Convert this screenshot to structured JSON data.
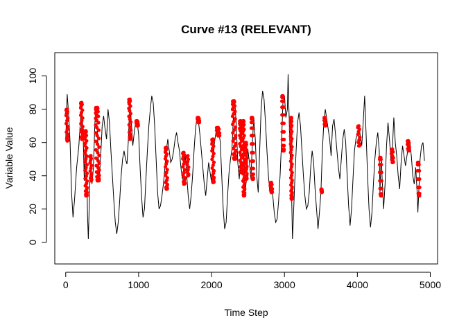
{
  "chart_data": {
    "type": "line",
    "title": "Curve #13 (RELEVANT)",
    "xlabel": "Time Step",
    "ylabel": "Variable Value",
    "xlim": [
      -150,
      5100
    ],
    "ylim": [
      -13,
      114
    ],
    "x_ticks": [
      0,
      1000,
      2000,
      3000,
      4000,
      5000
    ],
    "y_ticks": [
      0,
      20,
      40,
      60,
      80,
      100
    ],
    "grid": false,
    "legend": "none",
    "line_color": "#000000",
    "highlight_color": "#ff0000",
    "series": [
      {
        "points": [
          [
            0,
            61
          ],
          [
            20,
            89
          ],
          [
            40,
            77
          ],
          [
            60,
            60
          ],
          [
            80,
            30
          ],
          [
            100,
            15
          ],
          [
            120,
            25
          ],
          [
            150,
            45
          ],
          [
            180,
            58
          ],
          [
            200,
            72
          ],
          [
            220,
            85
          ],
          [
            240,
            62
          ],
          [
            255,
            37
          ],
          [
            270,
            65
          ],
          [
            285,
            50
          ],
          [
            300,
            15
          ],
          [
            310,
            2
          ],
          [
            320,
            18
          ],
          [
            340,
            52
          ],
          [
            360,
            35
          ],
          [
            380,
            45
          ],
          [
            400,
            72
          ],
          [
            420,
            81
          ],
          [
            440,
            60
          ],
          [
            460,
            38
          ],
          [
            480,
            52
          ],
          [
            500,
            70
          ],
          [
            520,
            76
          ],
          [
            540,
            68
          ],
          [
            560,
            62
          ],
          [
            580,
            80
          ],
          [
            600,
            72
          ],
          [
            620,
            55
          ],
          [
            640,
            40
          ],
          [
            660,
            25
          ],
          [
            680,
            12
          ],
          [
            700,
            5
          ],
          [
            720,
            12
          ],
          [
            740,
            25
          ],
          [
            760,
            40
          ],
          [
            780,
            50
          ],
          [
            800,
            55
          ],
          [
            820,
            50
          ],
          [
            840,
            47
          ],
          [
            860,
            62
          ],
          [
            880,
            86
          ],
          [
            900,
            72
          ],
          [
            920,
            58
          ],
          [
            940,
            66
          ],
          [
            960,
            72
          ],
          [
            980,
            72
          ],
          [
            1000,
            65
          ],
          [
            1020,
            45
          ],
          [
            1040,
            28
          ],
          [
            1060,
            15
          ],
          [
            1080,
            20
          ],
          [
            1100,
            38
          ],
          [
            1120,
            55
          ],
          [
            1140,
            70
          ],
          [
            1160,
            80
          ],
          [
            1180,
            88
          ],
          [
            1200,
            84
          ],
          [
            1220,
            70
          ],
          [
            1240,
            50
          ],
          [
            1260,
            30
          ],
          [
            1280,
            20
          ],
          [
            1300,
            22
          ],
          [
            1320,
            28
          ],
          [
            1340,
            35
          ],
          [
            1360,
            45
          ],
          [
            1380,
            55
          ],
          [
            1400,
            62
          ],
          [
            1420,
            55
          ],
          [
            1440,
            48
          ],
          [
            1460,
            50
          ],
          [
            1480,
            55
          ],
          [
            1500,
            62
          ],
          [
            1520,
            66
          ],
          [
            1540,
            60
          ],
          [
            1560,
            55
          ],
          [
            1580,
            45
          ],
          [
            1600,
            38
          ],
          [
            1620,
            45
          ],
          [
            1640,
            52
          ],
          [
            1660,
            40
          ],
          [
            1680,
            28
          ],
          [
            1700,
            20
          ],
          [
            1720,
            28
          ],
          [
            1740,
            40
          ],
          [
            1760,
            55
          ],
          [
            1780,
            68
          ],
          [
            1800,
            75
          ],
          [
            1820,
            73
          ],
          [
            1840,
            65
          ],
          [
            1860,
            55
          ],
          [
            1880,
            45
          ],
          [
            1900,
            35
          ],
          [
            1920,
            28
          ],
          [
            1940,
            38
          ],
          [
            1960,
            48
          ],
          [
            1980,
            42
          ],
          [
            2000,
            36
          ],
          [
            2020,
            48
          ],
          [
            2040,
            60
          ],
          [
            2060,
            66
          ],
          [
            2080,
            68
          ],
          [
            2100,
            67
          ],
          [
            2120,
            60
          ],
          [
            2140,
            40
          ],
          [
            2160,
            20
          ],
          [
            2180,
            8
          ],
          [
            2200,
            12
          ],
          [
            2220,
            28
          ],
          [
            2240,
            42
          ],
          [
            2260,
            50
          ],
          [
            2280,
            56
          ],
          [
            2300,
            76
          ],
          [
            2320,
            84
          ],
          [
            2340,
            70
          ],
          [
            2360,
            48
          ],
          [
            2380,
            38
          ],
          [
            2400,
            52
          ],
          [
            2420,
            73
          ],
          [
            2440,
            62
          ],
          [
            2460,
            30
          ],
          [
            2480,
            38
          ],
          [
            2500,
            55
          ],
          [
            2520,
            48
          ],
          [
            2540,
            38
          ],
          [
            2560,
            60
          ],
          [
            2580,
            75
          ],
          [
            2600,
            62
          ],
          [
            2620,
            40
          ],
          [
            2640,
            30
          ],
          [
            2660,
            55
          ],
          [
            2680,
            80
          ],
          [
            2700,
            91
          ],
          [
            2720,
            86
          ],
          [
            2740,
            72
          ],
          [
            2760,
            55
          ],
          [
            2780,
            40
          ],
          [
            2800,
            30
          ],
          [
            2820,
            35
          ],
          [
            2840,
            28
          ],
          [
            2860,
            18
          ],
          [
            2880,
            12
          ],
          [
            2900,
            14
          ],
          [
            2920,
            25
          ],
          [
            2940,
            40
          ],
          [
            2960,
            60
          ],
          [
            2980,
            85
          ],
          [
            3000,
            88
          ],
          [
            3020,
            75
          ],
          [
            3040,
            80
          ],
          [
            3050,
            101
          ],
          [
            3060,
            82
          ],
          [
            3080,
            50
          ],
          [
            3100,
            25
          ],
          [
            3110,
            2
          ],
          [
            3120,
            12
          ],
          [
            3140,
            35
          ],
          [
            3160,
            55
          ],
          [
            3180,
            72
          ],
          [
            3200,
            78
          ],
          [
            3220,
            70
          ],
          [
            3240,
            55
          ],
          [
            3260,
            40
          ],
          [
            3280,
            28
          ],
          [
            3300,
            20
          ],
          [
            3320,
            22
          ],
          [
            3340,
            30
          ],
          [
            3360,
            45
          ],
          [
            3380,
            55
          ],
          [
            3400,
            48
          ],
          [
            3420,
            32
          ],
          [
            3440,
            20
          ],
          [
            3460,
            8
          ],
          [
            3480,
            18
          ],
          [
            3500,
            30
          ],
          [
            3520,
            55
          ],
          [
            3540,
            72
          ],
          [
            3560,
            80
          ],
          [
            3580,
            74
          ],
          [
            3600,
            68
          ],
          [
            3620,
            62
          ],
          [
            3640,
            52
          ],
          [
            3660,
            70
          ],
          [
            3680,
            74
          ],
          [
            3700,
            65
          ],
          [
            3720,
            55
          ],
          [
            3740,
            45
          ],
          [
            3760,
            38
          ],
          [
            3780,
            50
          ],
          [
            3800,
            62
          ],
          [
            3820,
            68
          ],
          [
            3840,
            60
          ],
          [
            3860,
            40
          ],
          [
            3880,
            22
          ],
          [
            3900,
            10
          ],
          [
            3920,
            20
          ],
          [
            3940,
            38
          ],
          [
            3960,
            55
          ],
          [
            3980,
            62
          ],
          [
            4000,
            65
          ],
          [
            4020,
            70
          ],
          [
            4040,
            64
          ],
          [
            4060,
            58
          ],
          [
            4080,
            72
          ],
          [
            4100,
            88
          ],
          [
            4120,
            65
          ],
          [
            4140,
            40
          ],
          [
            4160,
            20
          ],
          [
            4180,
            9
          ],
          [
            4200,
            18
          ],
          [
            4220,
            35
          ],
          [
            4240,
            50
          ],
          [
            4260,
            60
          ],
          [
            4280,
            66
          ],
          [
            4300,
            55
          ],
          [
            4310,
            30
          ],
          [
            4320,
            45
          ],
          [
            4330,
            50
          ],
          [
            4340,
            38
          ],
          [
            4360,
            20
          ],
          [
            4380,
            35
          ],
          [
            4400,
            58
          ],
          [
            4420,
            72
          ],
          [
            4440,
            62
          ],
          [
            4460,
            50
          ],
          [
            4480,
            56
          ],
          [
            4500,
            75
          ],
          [
            4520,
            60
          ],
          [
            4540,
            52
          ],
          [
            4560,
            40
          ],
          [
            4580,
            32
          ],
          [
            4600,
            48
          ],
          [
            4620,
            58
          ],
          [
            4640,
            52
          ],
          [
            4660,
            46
          ],
          [
            4680,
            52
          ],
          [
            4700,
            58
          ],
          [
            4720,
            60
          ],
          [
            4740,
            52
          ],
          [
            4760,
            40
          ],
          [
            4780,
            35
          ],
          [
            4800,
            45
          ],
          [
            4820,
            30
          ],
          [
            4830,
            18
          ],
          [
            4840,
            28
          ],
          [
            4850,
            38
          ],
          [
            4860,
            50
          ],
          [
            4880,
            58
          ],
          [
            4900,
            60
          ],
          [
            4920,
            49
          ]
        ]
      }
    ],
    "highlights": [
      [
        0,
        40,
        61,
        80
      ],
      [
        200,
        240,
        62,
        84
      ],
      [
        255,
        300,
        28,
        67
      ],
      [
        330,
        360,
        37,
        52
      ],
      [
        400,
        470,
        37,
        81
      ],
      [
        860,
        900,
        62,
        86
      ],
      [
        960,
        1000,
        70,
        73
      ],
      [
        1360,
        1400,
        32,
        57
      ],
      [
        1600,
        1640,
        35,
        54
      ],
      [
        1660,
        1690,
        40,
        52
      ],
      [
        1800,
        1840,
        72,
        75
      ],
      [
        2000,
        2040,
        36,
        62
      ],
      [
        2060,
        2120,
        64,
        69
      ],
      [
        2280,
        2340,
        50,
        85
      ],
      [
        2380,
        2420,
        42,
        73
      ],
      [
        2420,
        2460,
        28,
        73
      ],
      [
        2460,
        2490,
        38,
        60
      ],
      [
        2540,
        2580,
        38,
        75
      ],
      [
        2800,
        2840,
        30,
        36
      ],
      [
        2960,
        3000,
        55,
        88
      ],
      [
        3080,
        3110,
        26,
        75
      ],
      [
        3500,
        3520,
        30,
        32
      ],
      [
        3540,
        3570,
        70,
        75
      ],
      [
        4000,
        4040,
        58,
        70
      ],
      [
        4300,
        4340,
        28,
        51
      ],
      [
        4460,
        4500,
        48,
        56
      ],
      [
        4680,
        4720,
        55,
        61
      ],
      [
        4820,
        4860,
        28,
        48
      ]
    ]
  }
}
